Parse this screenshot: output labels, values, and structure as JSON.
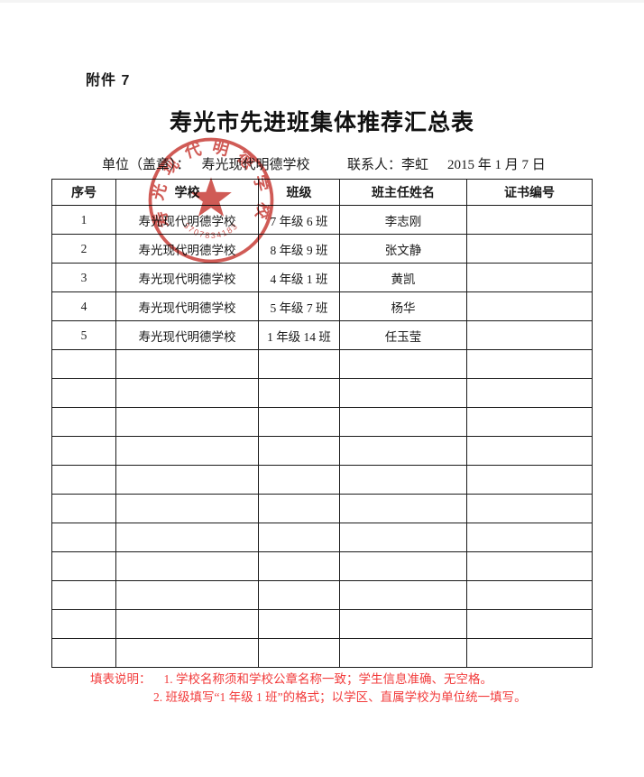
{
  "page": {
    "attachment_label": "附件 7",
    "title": "寿光市先进班集体推荐汇总表",
    "unit_label": "单位（盖章）：",
    "unit_value": "寿光现代明德学校",
    "contact_label": "联系人：",
    "contact_name": "李虹",
    "date": "2015 年 1 月 7 日"
  },
  "stamp": {
    "text": "寿光现代明德学校",
    "number": "3707834183",
    "color": "#c8403a"
  },
  "table": {
    "headers": [
      "序号",
      "学校",
      "班级",
      "班主任姓名",
      "证书编号"
    ],
    "rows": [
      [
        "1",
        "寿光现代明德学校",
        "7 年级 6 班",
        "李志刚",
        ""
      ],
      [
        "2",
        "寿光现代明德学校",
        "8 年级 9 班",
        "张文静",
        ""
      ],
      [
        "3",
        "寿光现代明德学校",
        "4 年级 1 班",
        "黄凯",
        ""
      ],
      [
        "4",
        "寿光现代明德学校",
        "5 年级 7 班",
        "杨华",
        ""
      ],
      [
        "5",
        "寿光现代明德学校",
        "1 年级 14 班",
        "任玉莹",
        ""
      ]
    ],
    "empty_row_count": 11
  },
  "notes": {
    "label": "填表说明：",
    "line1": "1. 学校名称须和学校公章名称一致；学生信息准确、无空格。",
    "line2": "2. 班级填写“1 年级 1 班”的格式；以学区、直属学校为单位统一填写。",
    "color": "#f23b3b"
  }
}
